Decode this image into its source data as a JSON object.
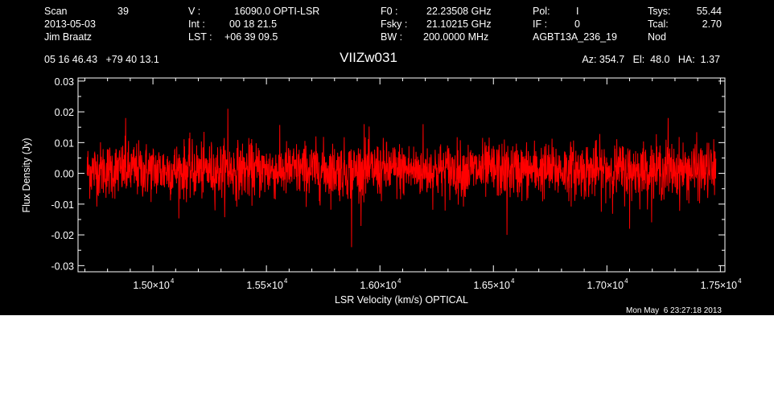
{
  "header": {
    "col1": [
      "Scan",
      "2013-05-03",
      "Jim Braatz"
    ],
    "scan_number": "39",
    "col2_keys": [
      "V   :",
      "Int  :",
      "LST :"
    ],
    "col2_vals": [
      "16090.0 OPTI-LSR",
      "00 18 21.5",
      "+06 39 09.5"
    ],
    "col3_keys": [
      "F0    :",
      "Fsky :",
      "BW   :"
    ],
    "col3_vals": [
      "22.23508 GHz",
      "21.10215 GHz",
      "200.0000 MHz"
    ],
    "col4_keys": [
      "Pol:",
      "IF  :",
      "AGBT13A_236_19"
    ],
    "col4_vals": [
      "I",
      "0",
      ""
    ],
    "col5_keys": [
      "Tsys:",
      "Tcal:",
      "Nod"
    ],
    "col5_vals": [
      "55.44",
      "2.70",
      ""
    ],
    "coords": "05 16 46.43   +79 40 13.1",
    "source": "VIIZw031",
    "pointing": "Az: 354.7   El:  48.0   HA:  1.37"
  },
  "timestamp": "Mon May  6 23:27:18 2013",
  "colors": {
    "background": "#000000",
    "foreground": "#ffffff",
    "trace": "#ff0000"
  },
  "chart_data": {
    "type": "line",
    "xlabel": "LSR Velocity (km/s) OPTICAL",
    "ylabel": "Flux Density (Jy)",
    "xlim": [
      14670,
      17520
    ],
    "ylim": [
      -0.032,
      0.031
    ],
    "x_ticks": [
      {
        "value": 15000,
        "mantissa": "1.50",
        "exponent": "4"
      },
      {
        "value": 15500,
        "mantissa": "1.55",
        "exponent": "4"
      },
      {
        "value": 16000,
        "mantissa": "1.60",
        "exponent": "4"
      },
      {
        "value": 16500,
        "mantissa": "1.65",
        "exponent": "4"
      },
      {
        "value": 17000,
        "mantissa": "1.70",
        "exponent": "4"
      },
      {
        "value": 17500,
        "mantissa": "1.75",
        "exponent": "4"
      }
    ],
    "y_ticks": [
      {
        "value": 0.03,
        "label": "0.03"
      },
      {
        "value": 0.02,
        "label": "0.02"
      },
      {
        "value": 0.01,
        "label": "0.01"
      },
      {
        "value": 0.0,
        "label": "0.00"
      },
      {
        "value": -0.01,
        "label": "-0.01"
      },
      {
        "value": -0.02,
        "label": "-0.02"
      },
      {
        "value": -0.03,
        "label": "-0.03"
      }
    ],
    "grid": false,
    "series": [
      {
        "x_start": 14710,
        "x_end": 17480,
        "noise_rms_jy": 0.0045,
        "baseline_jy": 0.001,
        "features": [
          {
            "x": 15330,
            "y": 0.021
          },
          {
            "x": 15875,
            "y": -0.024
          },
          {
            "x": 16560,
            "y": -0.02
          },
          {
            "x": 14880,
            "y": 0.018
          },
          {
            "x": 17270,
            "y": 0.018
          },
          {
            "x": 17100,
            "y": -0.018
          },
          {
            "x": 15930,
            "y": 0.016
          },
          {
            "x": 16190,
            "y": 0.016
          }
        ]
      }
    ]
  }
}
